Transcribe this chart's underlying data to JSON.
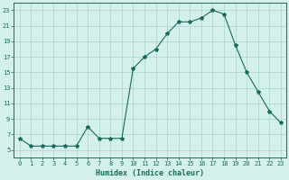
{
  "x": [
    0,
    1,
    2,
    3,
    4,
    5,
    6,
    7,
    8,
    9,
    10,
    11,
    12,
    13,
    14,
    15,
    16,
    17,
    18,
    19,
    20,
    21,
    22,
    23
  ],
  "y": [
    6.5,
    5.5,
    5.5,
    5.5,
    5.5,
    5.5,
    8.0,
    6.5,
    6.5,
    6.5,
    15.5,
    17.0,
    18.0,
    20.0,
    21.5,
    21.5,
    22.0,
    23.0,
    22.5,
    18.5,
    15.0,
    12.5,
    10.0,
    8.5
  ],
  "line_color": "#1a6b5a",
  "marker": "*",
  "marker_size": 3,
  "bg_color": "#d4f0ec",
  "grid_color": "#b0d8d4",
  "xlabel": "Humidex (Indice chaleur)",
  "xlim": [
    -0.5,
    23.5
  ],
  "ylim": [
    4,
    24
  ],
  "yticks": [
    5,
    7,
    9,
    11,
    13,
    15,
    17,
    19,
    21,
    23
  ],
  "xticks": [
    0,
    1,
    2,
    3,
    4,
    5,
    6,
    7,
    8,
    9,
    10,
    11,
    12,
    13,
    14,
    15,
    16,
    17,
    18,
    19,
    20,
    21,
    22,
    23
  ],
  "tick_fontsize": 5.0,
  "xlabel_fontsize": 6.0
}
